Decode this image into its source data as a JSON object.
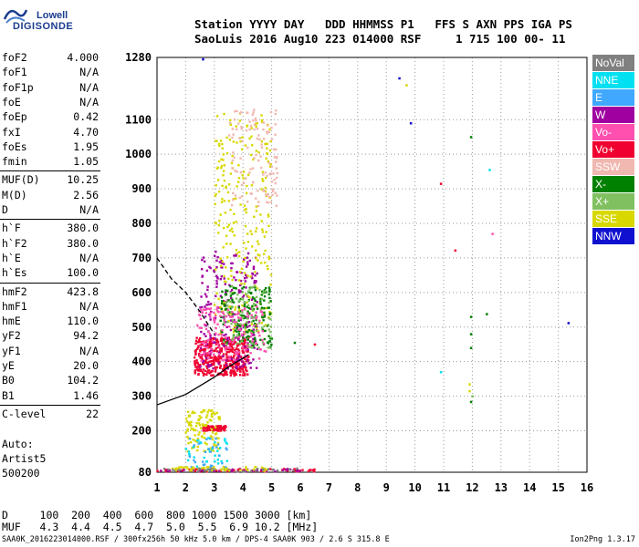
{
  "logo": {
    "line1": "Lowell",
    "line2": "DIGISONDE"
  },
  "header": {
    "row1": "Station YYYY DAY   DDD HHMMSS P1   FFS S AXN PPS IGA PS",
    "row2": "SaoLuis 2016 Aug10 223 014000 RSF     1 715 100 00- 11"
  },
  "params": [
    {
      "name": "foF2",
      "value": "4.000"
    },
    {
      "name": "foF1",
      "value": "N/A"
    },
    {
      "name": "foF1p",
      "value": "N/A"
    },
    {
      "name": "foE",
      "value": "N/A"
    },
    {
      "name": "foEp",
      "value": "0.42"
    },
    {
      "name": "fxI",
      "value": "4.70"
    },
    {
      "name": "foEs",
      "value": "1.95"
    },
    {
      "name": "fmin",
      "value": "1.05"
    },
    {
      "name": "MUF(D)",
      "value": "10.25"
    },
    {
      "name": "M(D)",
      "value": "2.56"
    },
    {
      "name": "D",
      "value": "N/A"
    },
    {
      "name": "h`F",
      "value": "380.0"
    },
    {
      "name": "h`F2",
      "value": "380.0"
    },
    {
      "name": "h`E",
      "value": "N/A"
    },
    {
      "name": "h`Es",
      "value": "100.0"
    },
    {
      "name": "hmF2",
      "value": "423.8"
    },
    {
      "name": "hmF1",
      "value": "N/A"
    },
    {
      "name": "hmE",
      "value": "110.0"
    },
    {
      "name": "yF2",
      "value": "94.2"
    },
    {
      "name": "yF1",
      "value": "N/A"
    },
    {
      "name": "yE",
      "value": "20.0"
    },
    {
      "name": "B0",
      "value": "104.2"
    },
    {
      "name": "B1",
      "value": "1.46"
    },
    {
      "name": "C-level",
      "value": "22"
    }
  ],
  "side_info": {
    "auto": "Auto:",
    "artist": "Artist5",
    "version": "500200"
  },
  "legend": [
    {
      "label": "NoVal",
      "color": "#808080"
    },
    {
      "label": "NNE",
      "color": "#00e0f0"
    },
    {
      "label": "E",
      "color": "#40a8ff"
    },
    {
      "label": "W",
      "color": "#a000a0"
    },
    {
      "label": "Vo-",
      "color": "#ff50b0"
    },
    {
      "label": "Vo+",
      "color": "#f00030"
    },
    {
      "label": "SSW",
      "color": "#f0b8b0"
    },
    {
      "label": "X-",
      "color": "#008000"
    },
    {
      "label": "X+",
      "color": "#80c060"
    },
    {
      "label": "SSE",
      "color": "#d8d800"
    },
    {
      "label": "NNW",
      "color": "#1010d0"
    }
  ],
  "footer": {
    "d_row": "D     100  200  400  600  800 1000 1500 3000 [km]",
    "muf_row": "MUF   4.3  4.4  4.5  4.7  5.0  5.5  6.9 10.2 [MHz]",
    "file": "SAA0K_2016223014000.RSF / 300fx256h 50 kHz 5.0 km / DPS-4 SAA0K 903 / 2.6 S 315.8 E",
    "tool": "Ion2Png 1.3.17"
  },
  "chart_data": {
    "type": "scatter",
    "title": "",
    "xlabel": "",
    "ylabel": "",
    "xlim": [
      1,
      16
    ],
    "ylim": [
      80,
      1280
    ],
    "xticks": [
      1,
      2,
      3,
      4,
      5,
      6,
      7,
      8,
      9,
      10,
      11,
      12,
      13,
      14,
      15,
      16
    ],
    "yticks": [
      80,
      200,
      300,
      400,
      500,
      600,
      700,
      800,
      900,
      1000,
      1100,
      1280
    ],
    "grid": "dotted",
    "legend_position": "right",
    "clusters": [
      {
        "series": "Vo+",
        "x": [
          2.3,
          4.2
        ],
        "y": [
          360,
          470
        ],
        "n": 420
      },
      {
        "series": "Vo+",
        "x": [
          2.6,
          3.4
        ],
        "y": [
          200,
          215
        ],
        "n": 80
      },
      {
        "series": "W",
        "x": [
          2.5,
          4.5
        ],
        "y": [
          380,
          720
        ],
        "n": 250
      },
      {
        "series": "SSE",
        "x": [
          3.0,
          5.0
        ],
        "y": [
          480,
          1120
        ],
        "n": 260
      },
      {
        "series": "SSE",
        "x": [
          2.0,
          3.2
        ],
        "y": [
          140,
          260
        ],
        "n": 110
      },
      {
        "series": "SSW",
        "x": [
          3.5,
          5.2
        ],
        "y": [
          850,
          1130
        ],
        "n": 120
      },
      {
        "series": "X-",
        "x": [
          3.2,
          5.0
        ],
        "y": [
          440,
          620
        ],
        "n": 160
      },
      {
        "series": "X+",
        "x": [
          3.3,
          5.0
        ],
        "y": [
          440,
          620
        ],
        "n": 100
      },
      {
        "series": "Vo-",
        "x": [
          2.4,
          4.8
        ],
        "y": [
          400,
          560
        ],
        "n": 140
      },
      {
        "series": "NNE",
        "x": [
          2.0,
          3.5
        ],
        "y": [
          83,
          180
        ],
        "n": 40
      },
      {
        "series": "E",
        "x": [
          2.0,
          3.5
        ],
        "y": [
          83,
          180
        ],
        "n": 30
      },
      {
        "series": "Vo+",
        "x": [
          1.0,
          6.5
        ],
        "y": [
          82,
          90
        ],
        "n": 70
      },
      {
        "series": "W",
        "x": [
          1.0,
          6.0
        ],
        "y": [
          82,
          90
        ],
        "n": 40
      },
      {
        "series": "SSE",
        "x": [
          1.5,
          5.0
        ],
        "y": [
          84,
          96
        ],
        "n": 50
      },
      {
        "series": "NoVal",
        "x": [
          1.0,
          6.0
        ],
        "y": [
          82,
          92
        ],
        "n": 30
      }
    ],
    "points": [
      {
        "series": "NNW",
        "x": 9.45,
        "y": 1220
      },
      {
        "series": "NNW",
        "x": 9.85,
        "y": 1090
      },
      {
        "series": "NNW",
        "x": 15.35,
        "y": 512
      },
      {
        "series": "SSE",
        "x": 9.7,
        "y": 1200
      },
      {
        "series": "X-",
        "x": 11.95,
        "y": 1050
      },
      {
        "series": "X-",
        "x": 11.95,
        "y": 530
      },
      {
        "series": "X-",
        "x": 12.5,
        "y": 538
      },
      {
        "series": "X-",
        "x": 11.95,
        "y": 480
      },
      {
        "series": "X-",
        "x": 11.95,
        "y": 440
      },
      {
        "series": "X-",
        "x": 11.95,
        "y": 284
      },
      {
        "series": "NNE",
        "x": 12.6,
        "y": 955
      },
      {
        "series": "NNE",
        "x": 10.9,
        "y": 370
      },
      {
        "series": "Vo+",
        "x": 10.9,
        "y": 915
      },
      {
        "series": "Vo+",
        "x": 11.4,
        "y": 722
      },
      {
        "series": "Vo-",
        "x": 12.7,
        "y": 770
      },
      {
        "series": "SSE",
        "x": 11.9,
        "y": 335
      },
      {
        "series": "SSE",
        "x": 11.9,
        "y": 315
      },
      {
        "series": "Vo+",
        "x": 6.5,
        "y": 450
      },
      {
        "series": "X-",
        "x": 5.8,
        "y": 455
      },
      {
        "series": "X+",
        "x": 12.0,
        "y": 300
      },
      {
        "series": "NNW",
        "x": 2.6,
        "y": 1275
      }
    ],
    "lines": [
      {
        "style": "dashed",
        "x": [
          1.0,
          1.5,
          2.0,
          2.5,
          2.8,
          3.0
        ],
        "y": [
          700,
          640,
          600,
          545,
          505,
          480
        ]
      },
      {
        "style": "solid",
        "x": [
          1.0,
          2.0,
          3.0,
          3.5,
          4.2
        ],
        "y": [
          275,
          305,
          355,
          385,
          420
        ]
      }
    ]
  }
}
